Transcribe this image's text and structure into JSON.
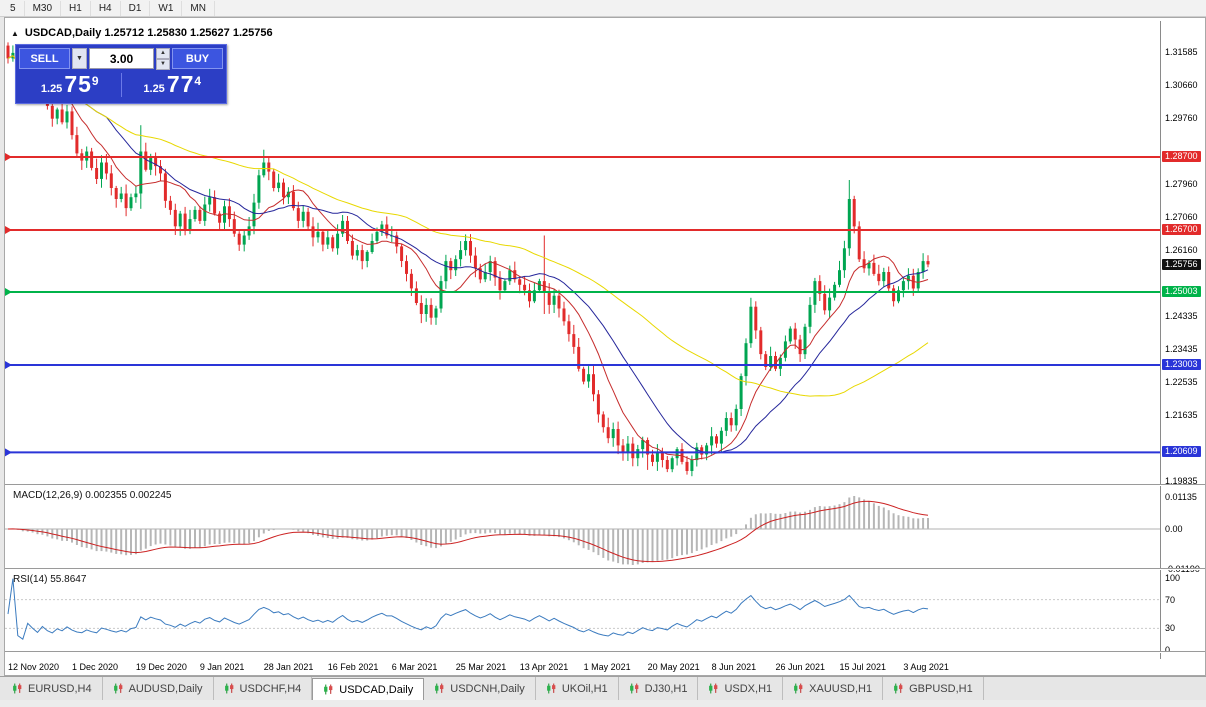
{
  "toolbar": {
    "timeframes": [
      "5",
      "M30",
      "H1",
      "H4",
      "D1",
      "W1",
      "MN"
    ]
  },
  "chart": {
    "title": "USDCAD,Daily 1.25712 1.25830 1.25627 1.25756",
    "symbol": "USDCAD",
    "period": "Daily",
    "ohlc": {
      "open": "1.25712",
      "high": "1.25830",
      "low": "1.25627",
      "close": "1.25756"
    }
  },
  "one_click": {
    "sell_label": "SELL",
    "buy_label": "BUY",
    "volume": "3.00",
    "sell_price_small": "1.25",
    "sell_price_big": "75",
    "sell_price_sup": "9",
    "buy_price_small": "1.25",
    "buy_price_big": "77",
    "buy_price_sup": "4"
  },
  "price_axis": {
    "labels": [
      {
        "text": "1.31585",
        "price": 1.31585
      },
      {
        "text": "1.30660",
        "price": 1.3066
      },
      {
        "text": "1.29760",
        "price": 1.2976
      },
      {
        "text": "1.27960",
        "price": 1.2796
      },
      {
        "text": "1.27060",
        "price": 1.2706
      },
      {
        "text": "1.26160",
        "price": 1.2616
      },
      {
        "text": "1.24335",
        "price": 1.24335
      },
      {
        "text": "1.23435",
        "price": 1.23435
      },
      {
        "text": "1.22535",
        "price": 1.22535
      },
      {
        "text": "1.21635",
        "price": 1.21635
      },
      {
        "text": "1.19835",
        "price": 1.19835
      }
    ],
    "badges": [
      {
        "text": "1.28700",
        "price": 1.287,
        "color": "#e22b2b"
      },
      {
        "text": "1.26700",
        "price": 1.267,
        "color": "#e22b2b"
      },
      {
        "text": "1.25756",
        "price": 1.25756,
        "color": "#111111"
      },
      {
        "text": "1.25003",
        "price": 1.25003,
        "color": "#00b34a"
      },
      {
        "text": "1.23003",
        "price": 1.23003,
        "color": "#2a35d8"
      },
      {
        "text": "1.20609",
        "price": 1.20609,
        "color": "#2a35d8"
      }
    ]
  },
  "levels": [
    {
      "price": 1.287,
      "color": "#e22b2b"
    },
    {
      "price": 1.267,
      "color": "#e22b2b"
    },
    {
      "price": 1.25003,
      "color": "#00b34a"
    },
    {
      "price": 1.23003,
      "color": "#2a35d8"
    },
    {
      "price": 1.20609,
      "color": "#2a35d8"
    }
  ],
  "macd": {
    "title": "MACD(12,26,9) 0.002355 0.002245",
    "axis": [
      "0.01135",
      "0.00",
      "-0.01190"
    ]
  },
  "rsi": {
    "title": "RSI(14) 55.8647",
    "axis": [
      "100",
      "70",
      "30",
      "0"
    ],
    "levels": [
      70,
      30
    ]
  },
  "date_axis": [
    "12 Nov 2020",
    "1 Dec 2020",
    "19 Dec 2020",
    "9 Jan 2021",
    "28 Jan 2021",
    "16 Feb 2021",
    "6 Mar 2021",
    "25 Mar 2021",
    "13 Apr 2021",
    "1 May 2021",
    "20 May 2021",
    "8 Jun 2021",
    "26 Jun 2021",
    "15 Jul 2021",
    "3 Aug 2021"
  ],
  "tabs": [
    {
      "label": "EURUSD,H4"
    },
    {
      "label": "AUDUSD,Daily"
    },
    {
      "label": "USDCHF,H4"
    },
    {
      "label": "USDCAD,Daily"
    },
    {
      "label": "USDCNH,Daily"
    },
    {
      "label": "UKOil,H1"
    },
    {
      "label": "DJ30,H1"
    },
    {
      "label": "USDX,H1"
    },
    {
      "label": "XAUUSD,H1"
    },
    {
      "label": "GBPUSD,H1"
    }
  ],
  "chart_data": {
    "type": "candlestick",
    "symbol": "USDCAD",
    "timeframe": "Daily",
    "first_open": 1.3175,
    "colors": {
      "up": "#00a551",
      "down": "#e22b2b"
    },
    "closes": [
      1.314,
      1.3155,
      1.3095,
      1.307,
      1.3105,
      1.3075,
      1.3035,
      1.306,
      1.301,
      1.2975,
      1.3,
      1.2965,
      1.2995,
      1.293,
      1.288,
      1.286,
      1.2885,
      1.284,
      1.281,
      1.2855,
      1.2825,
      1.2785,
      1.2755,
      1.277,
      1.273,
      1.276,
      1.277,
      1.2885,
      1.2835,
      1.287,
      1.2845,
      1.2825,
      1.275,
      1.2725,
      1.268,
      1.2715,
      1.267,
      1.27,
      1.2725,
      1.2695,
      1.274,
      1.276,
      1.2715,
      1.269,
      1.2735,
      1.27,
      1.266,
      1.263,
      1.2655,
      1.268,
      1.2745,
      1.282,
      1.2855,
      1.283,
      1.2785,
      1.28,
      1.276,
      1.2775,
      1.273,
      1.2695,
      1.272,
      1.268,
      1.265,
      1.2665,
      1.263,
      1.265,
      1.262,
      1.266,
      1.2695,
      1.264,
      1.26,
      1.2615,
      1.2585,
      1.261,
      1.264,
      1.2665,
      1.2685,
      1.2655,
      1.2655,
      1.2625,
      1.2585,
      1.255,
      1.251,
      1.247,
      1.244,
      1.2465,
      1.243,
      1.2455,
      1.253,
      1.2585,
      1.256,
      1.259,
      1.2615,
      1.264,
      1.26,
      1.2565,
      1.2535,
      1.2555,
      1.2585,
      1.254,
      1.2505,
      1.253,
      1.256,
      1.2535,
      1.252,
      1.2505,
      1.2475,
      1.2505,
      1.253,
      1.25,
      1.2465,
      1.249,
      1.2455,
      1.242,
      1.2385,
      1.235,
      1.229,
      1.2255,
      1.2275,
      1.222,
      1.2165,
      1.213,
      1.21,
      1.2125,
      1.208,
      1.206,
      1.2085,
      1.2045,
      1.207,
      1.2095,
      1.2055,
      1.2035,
      1.206,
      1.204,
      1.2015,
      1.2045,
      1.207,
      1.2035,
      1.201,
      1.204,
      1.2075,
      1.2055,
      1.208,
      1.2105,
      1.2085,
      1.212,
      1.2155,
      1.2135,
      1.218,
      1.227,
      1.236,
      1.246,
      1.2395,
      1.233,
      1.2295,
      1.2325,
      1.229,
      1.232,
      1.2365,
      1.24,
      1.237,
      1.233,
      1.2405,
      1.2465,
      1.253,
      1.2495,
      1.245,
      1.2485,
      1.252,
      1.256,
      1.262,
      1.2755,
      1.268,
      1.259,
      1.2565,
      1.258,
      1.255,
      1.253,
      1.2555,
      1.251,
      1.2475,
      1.2505,
      1.253,
      1.2545,
      1.251,
      1.2555,
      1.2585,
      1.2576
    ],
    "wick_overrides": {
      "27": [
        1.2957,
        1.2728
      ],
      "52": [
        1.289,
        null
      ],
      "84": [
        null,
        1.2415
      ],
      "109": [
        1.2655,
        1.244
      ],
      "130": [
        null,
        1.2013
      ],
      "138": [
        null,
        1.2
      ],
      "171": [
        1.2807,
        null
      ]
    },
    "moving_averages": [
      {
        "name": "fast-ma",
        "period": 10,
        "color": "#c62d2d"
      },
      {
        "name": "medium-ma",
        "period": 21,
        "color": "#26279b"
      },
      {
        "name": "slow-ma",
        "period": 55,
        "color": "#e8d800"
      }
    ],
    "indicators": {
      "macd": {
        "fast": 12,
        "slow": 26,
        "signal": 9
      },
      "rsi": {
        "period": 14
      }
    }
  }
}
